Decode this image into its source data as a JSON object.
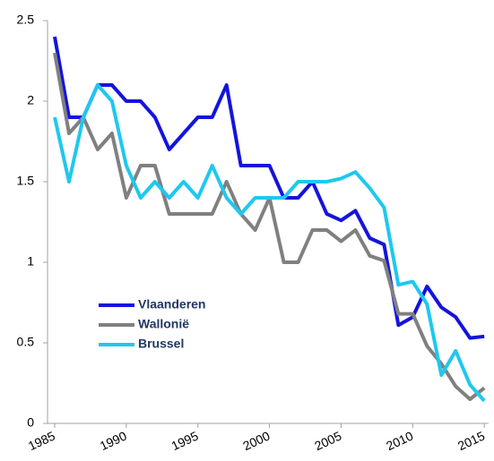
{
  "chart_data": {
    "type": "line",
    "x": [
      1985,
      1986,
      1987,
      1988,
      1989,
      1990,
      1991,
      1992,
      1993,
      1994,
      1995,
      1996,
      1997,
      1998,
      1999,
      2000,
      2001,
      2002,
      2003,
      2004,
      2005,
      2006,
      2007,
      2008,
      2009,
      2010,
      2011,
      2012,
      2013,
      2014,
      2015
    ],
    "series": [
      {
        "name": "Vlaanderen",
        "color": "#1414dc",
        "values": [
          2.4,
          1.9,
          1.9,
          2.1,
          2.1,
          2.0,
          2.0,
          1.9,
          1.7,
          1.8,
          1.9,
          1.9,
          2.1,
          1.6,
          1.6,
          1.6,
          1.4,
          1.4,
          1.5,
          1.3,
          1.26,
          1.32,
          1.15,
          1.11,
          0.61,
          0.66,
          0.85,
          0.72,
          0.66,
          0.53,
          0.54
        ]
      },
      {
        "name": "Wallonië",
        "color": "#808080",
        "values": [
          2.3,
          1.8,
          1.9,
          1.7,
          1.8,
          1.4,
          1.6,
          1.6,
          1.3,
          1.3,
          1.3,
          1.3,
          1.5,
          1.3,
          1.2,
          1.4,
          1.0,
          1.0,
          1.2,
          1.2,
          1.13,
          1.2,
          1.04,
          1.01,
          0.68,
          0.68,
          0.48,
          0.37,
          0.23,
          0.15,
          0.22
        ]
      },
      {
        "name": "Brussel",
        "color": "#1ec8f0",
        "values": [
          1.9,
          1.5,
          1.9,
          2.1,
          2.0,
          1.6,
          1.4,
          1.5,
          1.4,
          1.5,
          1.4,
          1.6,
          1.4,
          1.3,
          1.4,
          1.4,
          1.4,
          1.5,
          1.5,
          1.5,
          1.52,
          1.56,
          1.46,
          1.34,
          0.86,
          0.88,
          0.74,
          0.3,
          0.45,
          0.24,
          0.14
        ]
      }
    ],
    "xlim": [
      1985,
      2015.3
    ],
    "xticks": [
      1985,
      1990,
      1995,
      2000,
      2005,
      2010,
      2015
    ],
    "ylim": [
      0,
      2.5
    ],
    "yticks": [
      0,
      0.5,
      1,
      1.5,
      2,
      2.5
    ],
    "grid": false,
    "legend": "lower left"
  }
}
